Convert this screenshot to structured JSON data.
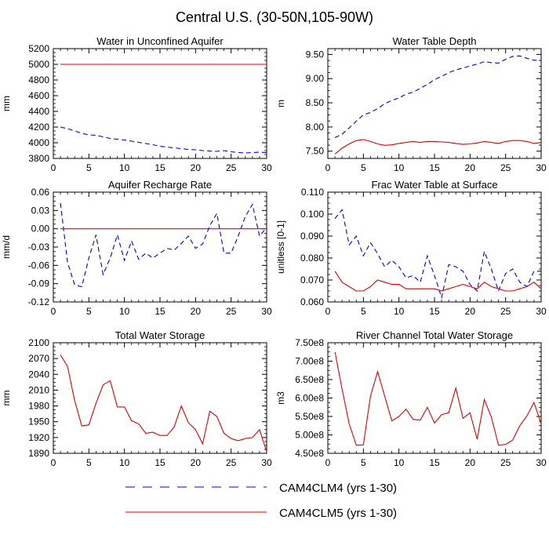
{
  "figure": {
    "title": "Central U.S. (30-50N,105-90W)",
    "series_colors": {
      "CAM4CLM4": "#0000dd",
      "CAM4CLM5": "#e00000"
    },
    "legend": [
      {
        "label": "CAM4CLM4 (yrs 1-30)",
        "color": "#0000dd",
        "style": "dashed"
      },
      {
        "label": "CAM4CLM5 (yrs 1-30)",
        "color": "#e00000",
        "style": "solid"
      }
    ]
  },
  "chart_data": [
    {
      "type": "line",
      "title": "Water in Unconfined Aquifer",
      "ylabel": "mm",
      "xlim": [
        0,
        30
      ],
      "ylim": [
        3800,
        5200
      ],
      "xticks": [
        0,
        5,
        10,
        15,
        20,
        25,
        30
      ],
      "yticks": [
        3800,
        4000,
        4200,
        4400,
        4600,
        4800,
        5000,
        5200
      ],
      "ytick_labels": [
        "3800",
        "4000",
        "4200",
        "4400",
        "4600",
        "4800",
        "5000",
        "5200"
      ],
      "x": [
        1,
        2,
        3,
        4,
        5,
        6,
        7,
        8,
        9,
        10,
        11,
        12,
        13,
        14,
        15,
        16,
        17,
        18,
        19,
        20,
        21,
        22,
        23,
        24,
        25,
        26,
        27,
        28,
        29,
        30
      ],
      "series": [
        {
          "name": "CAM4CLM4",
          "style": "dashed",
          "values": [
            4200,
            4180,
            4150,
            4120,
            4100,
            4095,
            4075,
            4055,
            4045,
            4035,
            4020,
            4005,
            3990,
            3975,
            3955,
            3945,
            3935,
            3925,
            3915,
            3910,
            3900,
            3895,
            3890,
            3900,
            3885,
            3875,
            3870,
            3875,
            3880,
            3875
          ]
        },
        {
          "name": "CAM4CLM5",
          "style": "solid",
          "values": [
            5000,
            5000,
            5000,
            5000,
            5000,
            5000,
            5000,
            5000,
            5000,
            5000,
            5000,
            5000,
            5000,
            5000,
            5000,
            5000,
            5000,
            5000,
            5000,
            5000,
            5000,
            5000,
            5000,
            5000,
            5000,
            5000,
            5000,
            5000,
            5000,
            5000
          ]
        }
      ]
    },
    {
      "type": "line",
      "title": "Water Table Depth",
      "ylabel": "m",
      "xlim": [
        0,
        30
      ],
      "ylim": [
        7.35,
        9.62
      ],
      "xticks": [
        0,
        5,
        10,
        15,
        20,
        25,
        30
      ],
      "yticks": [
        7.5,
        8.0,
        8.5,
        9.0,
        9.5
      ],
      "ytick_labels": [
        "7.50",
        "8.00",
        "8.50",
        "9.00",
        "9.50"
      ],
      "x": [
        1,
        2,
        3,
        4,
        5,
        6,
        7,
        8,
        9,
        10,
        11,
        12,
        13,
        14,
        15,
        16,
        17,
        18,
        19,
        20,
        21,
        22,
        23,
        24,
        25,
        26,
        27,
        28,
        29,
        30
      ],
      "series": [
        {
          "name": "CAM4CLM4",
          "style": "dashed",
          "values": [
            7.78,
            7.85,
            7.98,
            8.12,
            8.25,
            8.3,
            8.38,
            8.48,
            8.55,
            8.6,
            8.68,
            8.72,
            8.8,
            8.88,
            8.98,
            9.05,
            9.12,
            9.18,
            9.22,
            9.26,
            9.3,
            9.35,
            9.33,
            9.32,
            9.4,
            9.46,
            9.47,
            9.42,
            9.38,
            9.38
          ]
        },
        {
          "name": "CAM4CLM5",
          "style": "solid",
          "values": [
            7.44,
            7.56,
            7.65,
            7.72,
            7.74,
            7.7,
            7.65,
            7.62,
            7.63,
            7.66,
            7.68,
            7.7,
            7.68,
            7.7,
            7.7,
            7.69,
            7.68,
            7.66,
            7.64,
            7.65,
            7.67,
            7.7,
            7.68,
            7.66,
            7.7,
            7.72,
            7.72,
            7.7,
            7.66,
            7.68
          ]
        }
      ]
    },
    {
      "type": "line",
      "title": "Aquifer Recharge Rate",
      "ylabel": "mm/d",
      "xlim": [
        0,
        30
      ],
      "ylim": [
        -0.12,
        0.06
      ],
      "xticks": [
        0,
        5,
        10,
        15,
        20,
        25,
        30
      ],
      "yticks": [
        -0.12,
        -0.09,
        -0.06,
        -0.03,
        0.0,
        0.03,
        0.06
      ],
      "ytick_labels": [
        "-0.12",
        "-0.09",
        "-0.06",
        "-0.03",
        "0.00",
        "0.03",
        "0.06"
      ],
      "x": [
        1,
        2,
        3,
        4,
        5,
        6,
        7,
        8,
        9,
        10,
        11,
        12,
        13,
        14,
        15,
        16,
        17,
        18,
        19,
        20,
        21,
        22,
        23,
        24,
        25,
        26,
        27,
        28,
        29,
        30
      ],
      "series": [
        {
          "name": "CAM4CLM4",
          "style": "dashed",
          "values": [
            0.042,
            -0.055,
            -0.092,
            -0.095,
            -0.048,
            -0.01,
            -0.075,
            -0.048,
            -0.01,
            -0.052,
            -0.02,
            -0.05,
            -0.04,
            -0.048,
            -0.04,
            -0.032,
            -0.035,
            -0.024,
            -0.012,
            -0.032,
            -0.025,
            0.005,
            0.025,
            -0.04,
            -0.04,
            -0.012,
            0.02,
            0.04,
            -0.012,
            0.002
          ]
        },
        {
          "name": "CAM4CLM5",
          "style": "solid",
          "values": [
            0,
            0,
            0,
            0,
            0,
            0,
            0,
            0,
            0,
            0,
            0,
            0,
            0,
            0,
            0,
            0,
            0,
            0,
            0,
            0,
            0,
            0,
            0,
            0,
            0,
            0,
            0,
            0,
            0,
            0
          ]
        }
      ]
    },
    {
      "type": "line",
      "title": "Frac Water Table at Surface",
      "ylabel": "unitless [0-1]",
      "xlim": [
        0,
        30
      ],
      "ylim": [
        0.06,
        0.11
      ],
      "xticks": [
        0,
        5,
        10,
        15,
        20,
        25,
        30
      ],
      "yticks": [
        0.06,
        0.07,
        0.08,
        0.09,
        0.1,
        0.11
      ],
      "ytick_labels": [
        "0.060",
        "0.070",
        "0.080",
        "0.090",
        "0.100",
        "0.110"
      ],
      "x": [
        1,
        2,
        3,
        4,
        5,
        6,
        7,
        8,
        9,
        10,
        11,
        12,
        13,
        14,
        15,
        16,
        17,
        18,
        19,
        20,
        21,
        22,
        23,
        24,
        25,
        26,
        27,
        28,
        29,
        30
      ],
      "series": [
        {
          "name": "CAM4CLM4",
          "style": "dashed",
          "values": [
            0.098,
            0.102,
            0.086,
            0.09,
            0.081,
            0.087,
            0.082,
            0.076,
            0.079,
            0.076,
            0.071,
            0.072,
            0.069,
            0.081,
            0.072,
            0.062,
            0.077,
            0.076,
            0.074,
            0.068,
            0.065,
            0.083,
            0.075,
            0.065,
            0.073,
            0.075,
            0.069,
            0.067,
            0.074,
            0.074
          ]
        },
        {
          "name": "CAM4CLM5",
          "style": "solid",
          "values": [
            0.074,
            0.069,
            0.067,
            0.065,
            0.065,
            0.067,
            0.07,
            0.069,
            0.068,
            0.068,
            0.066,
            0.066,
            0.066,
            0.066,
            0.066,
            0.065,
            0.066,
            0.067,
            0.068,
            0.067,
            0.066,
            0.069,
            0.067,
            0.066,
            0.065,
            0.065,
            0.066,
            0.067,
            0.069,
            0.066
          ]
        }
      ]
    },
    {
      "type": "line",
      "title": "Total Water Storage",
      "ylabel": "mm",
      "xlim": [
        0,
        30
      ],
      "ylim": [
        1890,
        2100
      ],
      "xticks": [
        0,
        5,
        10,
        15,
        20,
        25,
        30
      ],
      "yticks": [
        1890,
        1920,
        1950,
        1980,
        2010,
        2040,
        2070,
        2100
      ],
      "ytick_labels": [
        "1890",
        "1920",
        "1950",
        "1980",
        "2010",
        "2040",
        "2070",
        "2100"
      ],
      "x": [
        1,
        2,
        3,
        4,
        5,
        6,
        7,
        8,
        9,
        10,
        11,
        12,
        13,
        14,
        15,
        16,
        17,
        18,
        19,
        20,
        21,
        22,
        23,
        24,
        25,
        26,
        27,
        28,
        29,
        30
      ],
      "series": [
        {
          "name": "CAM4CLM5",
          "style": "solid",
          "values": [
            2077,
            2055,
            1990,
            1942,
            1944,
            1985,
            2020,
            2028,
            1978,
            1978,
            1952,
            1946,
            1928,
            1930,
            1924,
            1924,
            1940,
            1980,
            1948,
            1935,
            1908,
            1970,
            1960,
            1928,
            1918,
            1914,
            1918,
            1920,
            1935,
            1893
          ]
        }
      ]
    },
    {
      "type": "line",
      "title": "River Channel Total Water Storage",
      "ylabel": "m3",
      "xlim": [
        0,
        30
      ],
      "ylim": [
        450000000.0,
        750000000.0
      ],
      "xticks": [
        0,
        5,
        10,
        15,
        20,
        25,
        30
      ],
      "yticks": [
        450000000.0,
        500000000.0,
        550000000.0,
        600000000.0,
        650000000.0,
        700000000.0,
        750000000.0
      ],
      "ytick_labels": [
        "4.50e8",
        "5.00e8",
        "5.50e8",
        "6.00e8",
        "6.50e8",
        "7.00e8",
        "7.50e8"
      ],
      "x": [
        1,
        2,
        3,
        4,
        5,
        6,
        7,
        8,
        9,
        10,
        11,
        12,
        13,
        14,
        15,
        16,
        17,
        18,
        19,
        20,
        21,
        22,
        23,
        24,
        25,
        26,
        27,
        28,
        29,
        30
      ],
      "series": [
        {
          "name": "CAM4CLM5",
          "style": "solid",
          "values": [
            725000000.0,
            625000000.0,
            530000000.0,
            472000000.0,
            473000000.0,
            605000000.0,
            672000000.0,
            605000000.0,
            538000000.0,
            550000000.0,
            570000000.0,
            542000000.0,
            540000000.0,
            575000000.0,
            532000000.0,
            555000000.0,
            560000000.0,
            627000000.0,
            545000000.0,
            560000000.0,
            488000000.0,
            596000000.0,
            548000000.0,
            472000000.0,
            474000000.0,
            486000000.0,
            525000000.0,
            552000000.0,
            588000000.0,
            530000000.0
          ]
        }
      ]
    }
  ]
}
